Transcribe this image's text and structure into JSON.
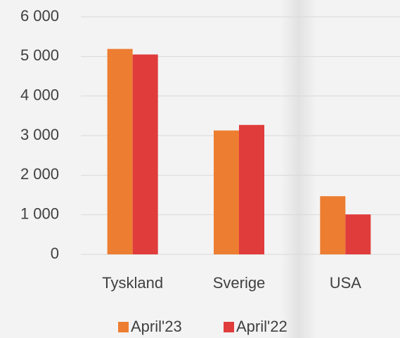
{
  "chart_data": {
    "type": "bar",
    "categories": [
      "Tyskland",
      "Sverige",
      "USA"
    ],
    "series": [
      {
        "name": "April'23",
        "color": "#ed7d31",
        "values": [
          5190,
          3130,
          1470
        ]
      },
      {
        "name": "April'22",
        "color": "#e03c3c",
        "values": [
          5050,
          3270,
          1010
        ]
      }
    ],
    "ylim": [
      0,
      6000
    ],
    "yticks": [
      0,
      {
        "value": 1000,
        "label": "1 000"
      },
      {
        "value": 2000,
        "label": "2 000"
      },
      {
        "value": 3000,
        "label": "3 000"
      },
      {
        "value": 4000,
        "label": "4 000"
      },
      {
        "value": 5000,
        "label": "5 000"
      },
      {
        "value": 6000,
        "label": "6 000"
      }
    ],
    "grid": true,
    "legend": "bottom"
  }
}
